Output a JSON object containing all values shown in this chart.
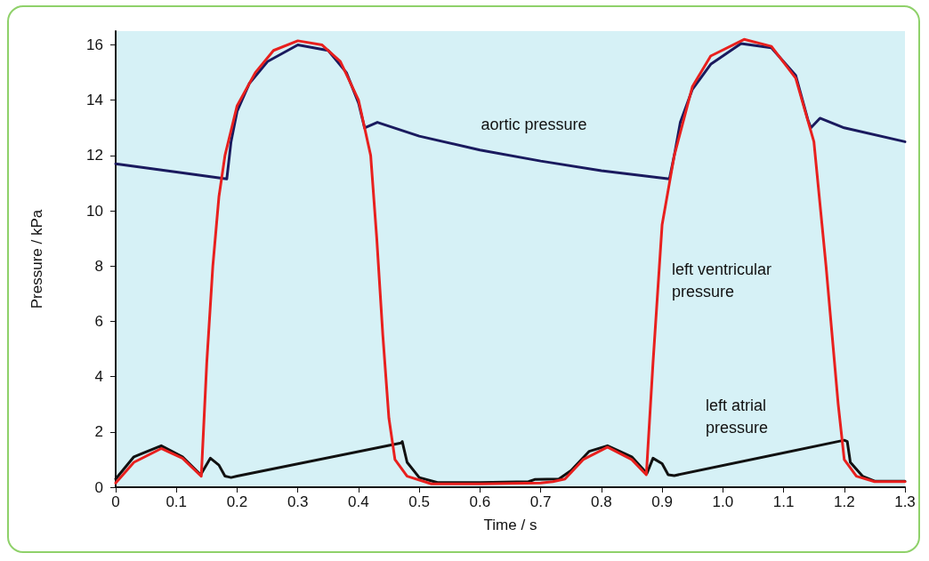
{
  "chart_data": {
    "type": "line",
    "xlabel": "Time / s",
    "ylabel": "Pressure / kPa",
    "xlim": [
      0,
      1.3
    ],
    "xticks": [
      0,
      0.1,
      0.2,
      0.3,
      0.4,
      0.5,
      0.6,
      0.7,
      0.8,
      0.9,
      {
        "value": 1,
        "label": "1.0"
      },
      1.1,
      1.2,
      1.3
    ],
    "ylim": [
      0,
      16.5
    ],
    "yticks": [
      0,
      2,
      4,
      6,
      8,
      10,
      12,
      14,
      16
    ],
    "grid": false,
    "marker": "none",
    "line_style": "solid",
    "series": [
      {
        "name": "aortic pressure",
        "color": "#1a1a5e",
        "x": [
          0,
          0.1,
          0.183,
          0.19,
          0.2,
          0.22,
          0.25,
          0.3,
          0.35,
          0.38,
          0.4,
          0.41,
          0.415,
          0.431,
          0.5,
          0.6,
          0.7,
          0.8,
          0.912,
          0.92,
          0.93,
          0.95,
          0.98,
          1.03,
          1.08,
          1.12,
          1.14,
          1.145,
          1.16,
          1.2,
          1.3
        ],
        "values": [
          11.7,
          11.4,
          11.15,
          12.5,
          13.6,
          14.6,
          15.4,
          16.0,
          15.8,
          15.0,
          13.9,
          13.0,
          13.05,
          13.2,
          12.7,
          12.2,
          11.8,
          11.45,
          11.15,
          12.0,
          13.2,
          14.4,
          15.3,
          16.05,
          15.9,
          14.9,
          13.3,
          13.0,
          13.35,
          13.0,
          12.5
        ]
      },
      {
        "name": "left ventricular\npressure",
        "color": "#e8201e",
        "x": [
          0,
          0.03,
          0.075,
          0.11,
          0.141,
          0.15,
          0.16,
          0.17,
          0.18,
          0.2,
          0.23,
          0.26,
          0.3,
          0.34,
          0.37,
          0.4,
          0.42,
          0.43,
          0.44,
          0.45,
          0.46,
          0.48,
          0.52,
          0.6,
          0.7,
          0.72,
          0.74,
          0.77,
          0.81,
          0.85,
          0.874,
          0.885,
          0.9,
          0.92,
          0.95,
          0.98,
          1.035,
          1.08,
          1.12,
          1.15,
          1.17,
          1.19,
          1.2,
          1.22,
          1.25,
          1.3
        ],
        "values": [
          0.15,
          0.9,
          1.4,
          1.05,
          0.4,
          4.5,
          8,
          10.5,
          12,
          13.8,
          15,
          15.8,
          16.15,
          16.0,
          15.4,
          14,
          12,
          9,
          5.5,
          2.5,
          1.0,
          0.4,
          0.12,
          0.12,
          0.15,
          0.2,
          0.3,
          1.0,
          1.45,
          1.0,
          0.45,
          4.5,
          9.5,
          12,
          14.5,
          15.6,
          16.2,
          15.95,
          14.8,
          12.5,
          8,
          3,
          1.0,
          0.4,
          0.2,
          0.2
        ]
      },
      {
        "name": "left atrial\npressure",
        "color": "#111111",
        "x": [
          0,
          0.03,
          0.075,
          0.11,
          0.14,
          0.156,
          0.17,
          0.18,
          0.19,
          0.2,
          0.47,
          0.472,
          0.48,
          0.5,
          0.53,
          0.6,
          0.68,
          0.69,
          0.73,
          0.75,
          0.78,
          0.81,
          0.85,
          0.875,
          0.885,
          0.9,
          0.91,
          0.92,
          1.2,
          1.205,
          1.21,
          1.23,
          1.25,
          1.3
        ],
        "values": [
          0.3,
          1.1,
          1.5,
          1.1,
          0.45,
          1.05,
          0.8,
          0.4,
          0.35,
          0.4,
          1.6,
          1.65,
          0.9,
          0.35,
          0.17,
          0.17,
          0.2,
          0.28,
          0.3,
          0.6,
          1.3,
          1.5,
          1.1,
          0.5,
          1.05,
          0.85,
          0.45,
          0.42,
          1.7,
          1.65,
          0.9,
          0.4,
          0.22,
          0.22
        ]
      }
    ]
  }
}
